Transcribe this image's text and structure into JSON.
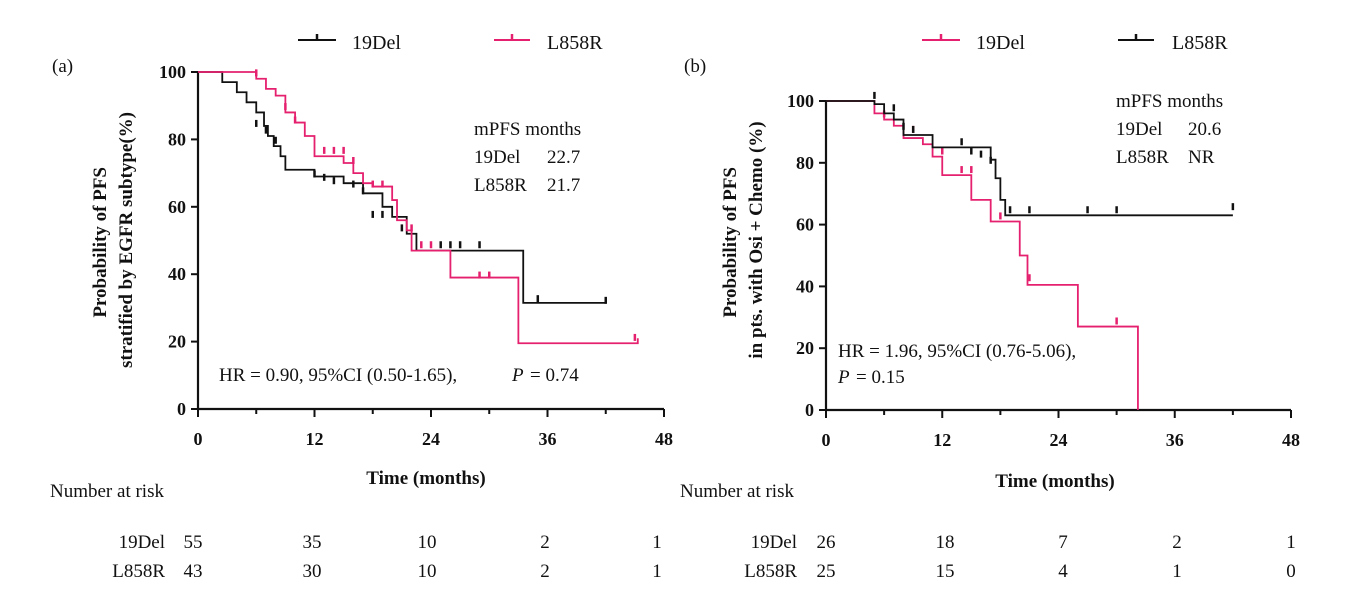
{
  "colors": {
    "19Del_a": "#111111",
    "L858R_a": "#e5206e",
    "19Del_b": "#e5206e",
    "L858R_b": "#111111"
  },
  "chart_data": [
    {
      "type": "line",
      "panel": "(a)",
      "title": "",
      "xlabel": "Time (months)",
      "ylabel_lines": [
        "Probability of PFS",
        "stratified by EGFR subtype(%)"
      ],
      "xlim": [
        0,
        48
      ],
      "ylim": [
        0,
        100
      ],
      "xticks": [
        "0",
        "12",
        "24",
        "36",
        "48"
      ],
      "yticks": [
        "0",
        "20",
        "40",
        "60",
        "80",
        "100"
      ],
      "legend": "top",
      "series": [
        {
          "name": "19Del",
          "color_key": "19Del_a",
          "steps": [
            [
              0,
              100
            ],
            [
              2.5,
              97
            ],
            [
              4,
              94
            ],
            [
              5,
              91
            ],
            [
              6,
              88
            ],
            [
              6.8,
              84
            ],
            [
              7.2,
              81
            ],
            [
              7.8,
              78
            ],
            [
              8.5,
              75
            ],
            [
              9,
              71
            ],
            [
              12,
              69
            ],
            [
              15,
              67
            ],
            [
              17,
              64
            ],
            [
              19,
              60
            ],
            [
              20,
              57
            ],
            [
              21.5,
              52
            ],
            [
              22.5,
              47
            ],
            [
              32.5,
              47
            ],
            [
              33.5,
              31.5
            ],
            [
              42,
              31.5
            ]
          ],
          "censors": [
            [
              6,
              84
            ],
            [
              7,
              82
            ],
            [
              8,
              79
            ],
            [
              12,
              69
            ],
            [
              13,
              68
            ],
            [
              14,
              67
            ],
            [
              16,
              66
            ],
            [
              17,
              64
            ],
            [
              18,
              57
            ],
            [
              19,
              57
            ],
            [
              21,
              53
            ],
            [
              25,
              48
            ],
            [
              26,
              48
            ],
            [
              27,
              48
            ],
            [
              29,
              48
            ],
            [
              35,
              32
            ],
            [
              42,
              31.5
            ]
          ]
        },
        {
          "name": "L858R",
          "color_key": "L858R_a",
          "steps": [
            [
              0,
              100
            ],
            [
              6,
              98
            ],
            [
              7,
              95
            ],
            [
              8,
              93
            ],
            [
              9,
              88
            ],
            [
              10,
              85
            ],
            [
              11,
              81
            ],
            [
              12,
              75
            ],
            [
              15,
              73
            ],
            [
              16,
              70
            ],
            [
              17,
              67
            ],
            [
              18,
              66
            ],
            [
              20,
              62
            ],
            [
              20.5,
              56
            ],
            [
              21.5,
              53
            ],
            [
              22,
              47
            ],
            [
              25.5,
              47
            ],
            [
              26,
              39
            ],
            [
              32.5,
              39
            ],
            [
              33,
              19.5
            ],
            [
              45,
              19.5
            ],
            [
              45.3,
              21
            ]
          ],
          "censors": [
            [
              6,
              99
            ],
            [
              9,
              89
            ],
            [
              10,
              85
            ],
            [
              13,
              76
            ],
            [
              14,
              76
            ],
            [
              15,
              76
            ],
            [
              16,
              73
            ],
            [
              18,
              66
            ],
            [
              19,
              66
            ],
            [
              22,
              53
            ],
            [
              23,
              48
            ],
            [
              24,
              48
            ],
            [
              29,
              39
            ],
            [
              30,
              39
            ],
            [
              45,
              20.5
            ]
          ]
        }
      ],
      "annotation": {
        "header": "mPFS  months",
        "rows": [
          {
            "label": "19Del",
            "value": "22.7"
          },
          {
            "label": "L858R",
            "value": "21.7"
          }
        ],
        "hr_text": "HR = 0.90, 95%CI (0.50-1.65),",
        "p_label": "P",
        "p_text": "= 0.74"
      },
      "risk_table": {
        "title": "Number at risk",
        "rows": [
          {
            "label": "19Del",
            "values": [
              "55",
              "35",
              "10",
              "2",
              "1"
            ]
          },
          {
            "label": "L858R",
            "values": [
              "43",
              "30",
              "10",
              "2",
              "1"
            ]
          }
        ]
      }
    },
    {
      "type": "line",
      "panel": "(b)",
      "title": "",
      "xlabel": "Time (months)",
      "ylabel_lines": [
        "Probability of PFS",
        "in pts. with Osi + Chemo (%)"
      ],
      "xlim": [
        0,
        48
      ],
      "ylim": [
        0,
        100
      ],
      "xticks": [
        "0",
        "12",
        "24",
        "36",
        "48"
      ],
      "yticks": [
        "0",
        "20",
        "40",
        "60",
        "80",
        "100"
      ],
      "legend": "top",
      "series": [
        {
          "name": "19Del",
          "color_key": "19Del_b",
          "steps": [
            [
              0,
              100
            ],
            [
              5,
              96
            ],
            [
              6,
              94
            ],
            [
              7,
              92
            ],
            [
              8,
              88
            ],
            [
              10,
              86
            ],
            [
              11,
              82
            ],
            [
              12,
              76
            ],
            [
              15,
              68
            ],
            [
              17,
              61
            ],
            [
              19.5,
              61
            ],
            [
              20,
              50
            ],
            [
              20.8,
              40.5
            ],
            [
              25.8,
              40.5
            ],
            [
              26,
              27
            ],
            [
              32,
              27
            ],
            [
              32.2,
              0
            ]
          ],
          "censors": [
            [
              6,
              95
            ],
            [
              9,
              90
            ],
            [
              12,
              83
            ],
            [
              14,
              77
            ],
            [
              15,
              77
            ],
            [
              18,
              62
            ],
            [
              21,
              42
            ],
            [
              30,
              28
            ]
          ]
        },
        {
          "name": "L858R",
          "color_key": "L858R_b",
          "steps": [
            [
              0,
              100
            ],
            [
              5,
              99
            ],
            [
              6,
              96
            ],
            [
              7,
              94
            ],
            [
              8,
              89
            ],
            [
              11,
              85
            ],
            [
              17,
              81
            ],
            [
              17.5,
              75
            ],
            [
              18,
              68
            ],
            [
              18.5,
              63
            ],
            [
              42,
              63
            ]
          ],
          "censors": [
            [
              5,
              101
            ],
            [
              7,
              97
            ],
            [
              8,
              91
            ],
            [
              9,
              90
            ],
            [
              14,
              86
            ],
            [
              15,
              83
            ],
            [
              16,
              82
            ],
            [
              17,
              80
            ],
            [
              19,
              64
            ],
            [
              21,
              64
            ],
            [
              27,
              64
            ],
            [
              30,
              64
            ],
            [
              42,
              65
            ]
          ]
        }
      ],
      "annotation": {
        "header": "mPFS  months",
        "rows": [
          {
            "label": "19Del",
            "value": "20.6"
          },
          {
            "label": "L858R",
            "value": "NR"
          }
        ],
        "hr_text": "HR = 1.96, 95%CI (0.76-5.06),",
        "p_label": "P",
        "p_text": "= 0.15"
      },
      "risk_table": {
        "title": "Number at risk",
        "rows": [
          {
            "label": "19Del",
            "values": [
              "26",
              "18",
              "7",
              "2",
              "1"
            ]
          },
          {
            "label": "L858R",
            "values": [
              "25",
              "15",
              "4",
              "1",
              "0"
            ]
          }
        ]
      }
    }
  ]
}
